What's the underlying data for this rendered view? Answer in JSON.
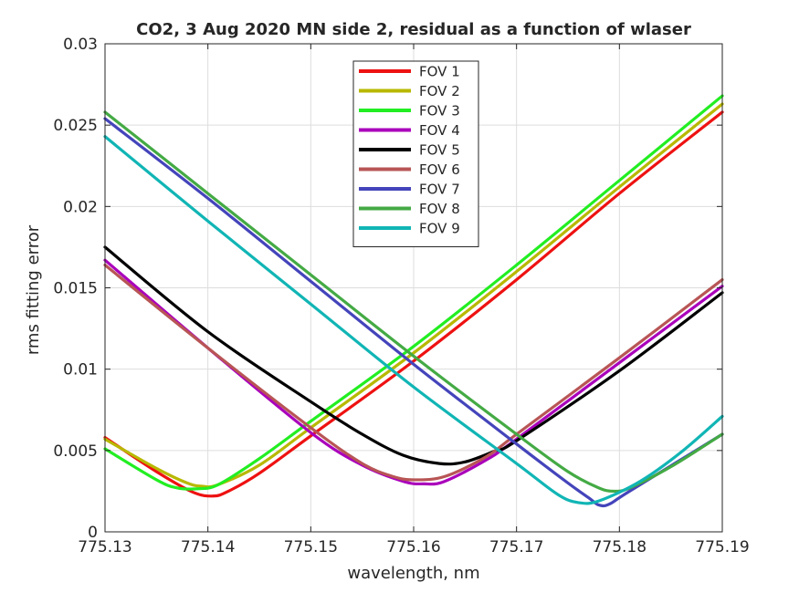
{
  "chart_data": {
    "type": "line",
    "title": "CO2, 3 Aug 2020 MN side 2, residual as a function of wlaser",
    "xlabel": "wavelength, nm",
    "ylabel": "rms fitting error",
    "xlim": [
      775.13,
      775.19
    ],
    "ylim": [
      0,
      0.03
    ],
    "xticks": [
      775.13,
      775.14,
      775.15,
      775.16,
      775.17,
      775.18,
      775.19
    ],
    "xtick_labels": [
      "775.13",
      "775.14",
      "775.15",
      "775.16",
      "775.17",
      "775.18",
      "775.19"
    ],
    "yticks": [
      0,
      0.005,
      0.01,
      0.015,
      0.02,
      0.025,
      0.03
    ],
    "ytick_labels": [
      "0",
      "0.005",
      "0.01",
      "0.015",
      "0.02",
      "0.025",
      "0.03"
    ],
    "grid": true,
    "legend_position": "top-center",
    "series": [
      {
        "name": "FOV 1",
        "color": "#ee1111",
        "points": [
          [
            775.13,
            0.0058
          ],
          [
            775.135,
            0.0037
          ],
          [
            775.1385,
            0.00245
          ],
          [
            775.1405,
            0.0022
          ],
          [
            775.142,
            0.0025
          ],
          [
            775.145,
            0.0036
          ],
          [
            775.15,
            0.0059
          ],
          [
            775.16,
            0.0105
          ],
          [
            775.17,
            0.0155
          ],
          [
            775.18,
            0.0208
          ],
          [
            775.19,
            0.0258
          ]
        ]
      },
      {
        "name": "FOV 2",
        "color": "#b8b800",
        "points": [
          [
            775.13,
            0.0057
          ],
          [
            775.135,
            0.0039
          ],
          [
            775.138,
            0.003
          ],
          [
            775.1395,
            0.0028
          ],
          [
            775.141,
            0.0029
          ],
          [
            775.145,
            0.0041
          ],
          [
            775.15,
            0.0064
          ],
          [
            775.16,
            0.011
          ],
          [
            775.17,
            0.016
          ],
          [
            775.18,
            0.0212
          ],
          [
            775.19,
            0.0263
          ]
        ]
      },
      {
        "name": "FOV 3",
        "color": "#22ee22",
        "points": [
          [
            775.13,
            0.0051
          ],
          [
            775.135,
            0.0032
          ],
          [
            775.137,
            0.0027
          ],
          [
            775.139,
            0.00265
          ],
          [
            775.141,
            0.0029
          ],
          [
            775.145,
            0.0045
          ],
          [
            775.15,
            0.0068
          ],
          [
            775.16,
            0.0114
          ],
          [
            775.17,
            0.0164
          ],
          [
            775.18,
            0.0216
          ],
          [
            775.19,
            0.0268
          ]
        ]
      },
      {
        "name": "FOV 4",
        "color": "#aa00bb",
        "points": [
          [
            775.13,
            0.0167
          ],
          [
            775.14,
            0.0113
          ],
          [
            775.15,
            0.0061
          ],
          [
            775.155,
            0.0041
          ],
          [
            775.159,
            0.0031
          ],
          [
            775.161,
            0.00295
          ],
          [
            775.163,
            0.0031
          ],
          [
            775.167,
            0.0044
          ],
          [
            775.17,
            0.0057
          ],
          [
            775.18,
            0.0104
          ],
          [
            775.19,
            0.0151
          ]
        ]
      },
      {
        "name": "FOV 5",
        "color": "#000000",
        "points": [
          [
            775.13,
            0.0175
          ],
          [
            775.14,
            0.0123
          ],
          [
            775.15,
            0.008
          ],
          [
            775.155,
            0.006
          ],
          [
            775.159,
            0.0047
          ],
          [
            775.1625,
            0.0042
          ],
          [
            775.165,
            0.0043
          ],
          [
            775.168,
            0.005
          ],
          [
            775.17,
            0.0056
          ],
          [
            775.18,
            0.0099
          ],
          [
            775.19,
            0.0147
          ]
        ]
      },
      {
        "name": "FOV 6",
        "color": "#b85555",
        "points": [
          [
            775.13,
            0.0164
          ],
          [
            775.14,
            0.0113
          ],
          [
            775.15,
            0.0064
          ],
          [
            775.155,
            0.0042
          ],
          [
            775.158,
            0.0034
          ],
          [
            775.16,
            0.0032
          ],
          [
            775.163,
            0.0034
          ],
          [
            775.167,
            0.0046
          ],
          [
            775.17,
            0.006
          ],
          [
            775.18,
            0.0107
          ],
          [
            775.19,
            0.0155
          ]
        ]
      },
      {
        "name": "FOV 7",
        "color": "#4444bb",
        "points": [
          [
            775.13,
            0.0254
          ],
          [
            775.14,
            0.0205
          ],
          [
            775.15,
            0.0154
          ],
          [
            775.16,
            0.0103
          ],
          [
            775.17,
            0.0054
          ],
          [
            775.175,
            0.003
          ],
          [
            775.177,
            0.0021
          ],
          [
            775.178,
            0.00165
          ],
          [
            775.179,
            0.0017
          ],
          [
            775.181,
            0.0025
          ],
          [
            775.19,
            0.006
          ]
        ]
      },
      {
        "name": "FOV 8",
        "color": "#44aa44",
        "points": [
          [
            775.13,
            0.0258
          ],
          [
            775.14,
            0.0208
          ],
          [
            775.15,
            0.0158
          ],
          [
            775.16,
            0.0108
          ],
          [
            775.17,
            0.006
          ],
          [
            775.175,
            0.0037
          ],
          [
            775.178,
            0.0027
          ],
          [
            775.1795,
            0.0025
          ],
          [
            775.181,
            0.0027
          ],
          [
            775.185,
            0.004
          ],
          [
            775.19,
            0.006
          ]
        ]
      },
      {
        "name": "FOV 9",
        "color": "#11b5b5",
        "points": [
          [
            775.13,
            0.0243
          ],
          [
            775.14,
            0.0191
          ],
          [
            775.15,
            0.014
          ],
          [
            775.16,
            0.0089
          ],
          [
            775.17,
            0.0042
          ],
          [
            775.174,
            0.0023
          ],
          [
            775.176,
            0.0018
          ],
          [
            775.178,
            0.0019
          ],
          [
            775.182,
            0.0031
          ],
          [
            775.186,
            0.0049
          ],
          [
            775.19,
            0.0071
          ]
        ]
      }
    ]
  }
}
